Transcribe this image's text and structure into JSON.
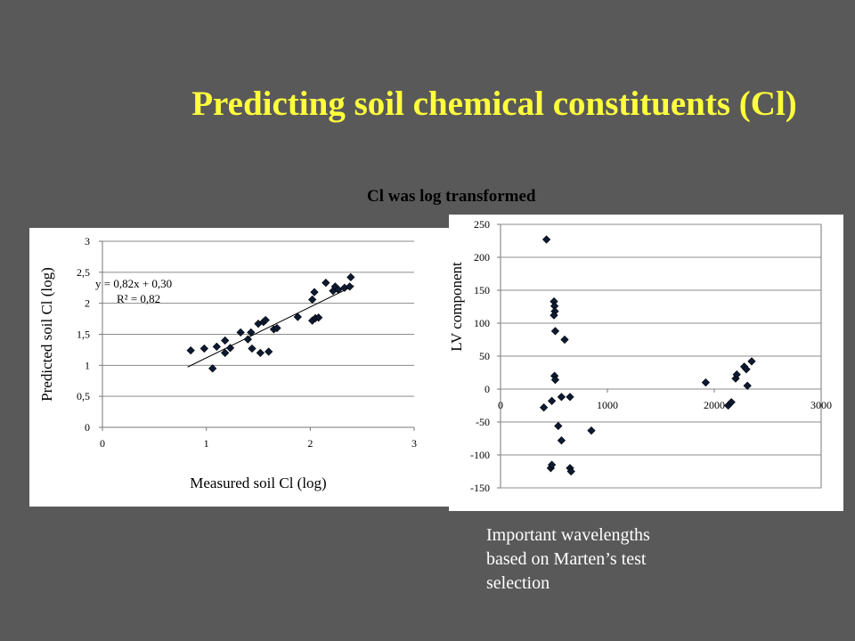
{
  "slide": {
    "title": "Predicting soil chemical constituents (Cl)",
    "subtitle": "Cl was log transformed",
    "note_lines": [
      "Important wavelengths",
      "based on Marten’s test",
      "selection"
    ]
  },
  "colors": {
    "background": "#595959",
    "title": "#ffff3c",
    "marker": "#0d1a33",
    "note": "#ffffff"
  },
  "chart_data": [
    {
      "type": "scatter",
      "xlabel": "Measured soil Cl (log)",
      "ylabel": "Predicted soil Cl (log)",
      "xlim": [
        0,
        3
      ],
      "ylim": [
        0,
        3
      ],
      "xticks": [
        0,
        1,
        2,
        3
      ],
      "yticks": [
        0,
        0.5,
        1,
        1.5,
        2,
        2.5,
        3
      ],
      "xtick_labels": [
        "0",
        "1",
        "2",
        "3"
      ],
      "ytick_labels": [
        "0",
        "0,5",
        "1",
        "1,5",
        "2",
        "2,5",
        "3"
      ],
      "grid": "horizontal",
      "trendline": {
        "slope": 0.82,
        "intercept": 0.3,
        "x_range": [
          0.82,
          2.42
        ]
      },
      "annotations": [
        "y = 0,82x + 0,30",
        "R² = 0,82"
      ],
      "points": [
        [
          0.85,
          1.24
        ],
        [
          0.98,
          1.27
        ],
        [
          1.06,
          0.95
        ],
        [
          1.1,
          1.3
        ],
        [
          1.18,
          1.4
        ],
        [
          1.18,
          1.2
        ],
        [
          1.23,
          1.28
        ],
        [
          1.33,
          1.53
        ],
        [
          1.4,
          1.42
        ],
        [
          1.43,
          1.53
        ],
        [
          1.44,
          1.27
        ],
        [
          1.5,
          1.67
        ],
        [
          1.52,
          1.2
        ],
        [
          1.55,
          1.7
        ],
        [
          1.57,
          1.73
        ],
        [
          1.6,
          1.22
        ],
        [
          1.65,
          1.58
        ],
        [
          1.68,
          1.6
        ],
        [
          1.88,
          1.78
        ],
        [
          2.02,
          2.06
        ],
        [
          2.02,
          1.72
        ],
        [
          2.04,
          2.18
        ],
        [
          2.05,
          1.76
        ],
        [
          2.08,
          1.77
        ],
        [
          2.15,
          2.33
        ],
        [
          2.22,
          2.2
        ],
        [
          2.24,
          2.27
        ],
        [
          2.27,
          2.22
        ],
        [
          2.33,
          2.25
        ],
        [
          2.38,
          2.27
        ],
        [
          2.39,
          2.42
        ]
      ]
    },
    {
      "type": "scatter",
      "xlabel": "",
      "ylabel": "LV component",
      "xlim": [
        0,
        3000
      ],
      "ylim": [
        -150,
        250
      ],
      "xticks": [
        0,
        1000,
        2000,
        3000
      ],
      "yticks": [
        -150,
        -100,
        -50,
        0,
        50,
        100,
        150,
        200,
        250
      ],
      "xtick_labels": [
        "0",
        "1000",
        "2000",
        "3000"
      ],
      "ytick_labels": [
        "-150",
        "-100",
        "-50",
        "0",
        "50",
        "100",
        "150",
        "200",
        "250"
      ],
      "grid": "horizontal",
      "points": [
        [
          430,
          227
        ],
        [
          405,
          -28
        ],
        [
          480,
          -18
        ],
        [
          470,
          -120
        ],
        [
          480,
          -115
        ],
        [
          500,
          133
        ],
        [
          505,
          126
        ],
        [
          508,
          118
        ],
        [
          500,
          112
        ],
        [
          512,
          88
        ],
        [
          505,
          20
        ],
        [
          512,
          14
        ],
        [
          540,
          -56
        ],
        [
          570,
          -12
        ],
        [
          570,
          -78
        ],
        [
          600,
          75
        ],
        [
          650,
          -12
        ],
        [
          650,
          -120
        ],
        [
          660,
          -125
        ],
        [
          850,
          -63
        ],
        [
          1920,
          10
        ],
        [
          2130,
          -25
        ],
        [
          2160,
          -20
        ],
        [
          2200,
          16
        ],
        [
          2210,
          22
        ],
        [
          2280,
          34
        ],
        [
          2300,
          30
        ],
        [
          2310,
          5
        ],
        [
          2350,
          42
        ]
      ]
    }
  ]
}
